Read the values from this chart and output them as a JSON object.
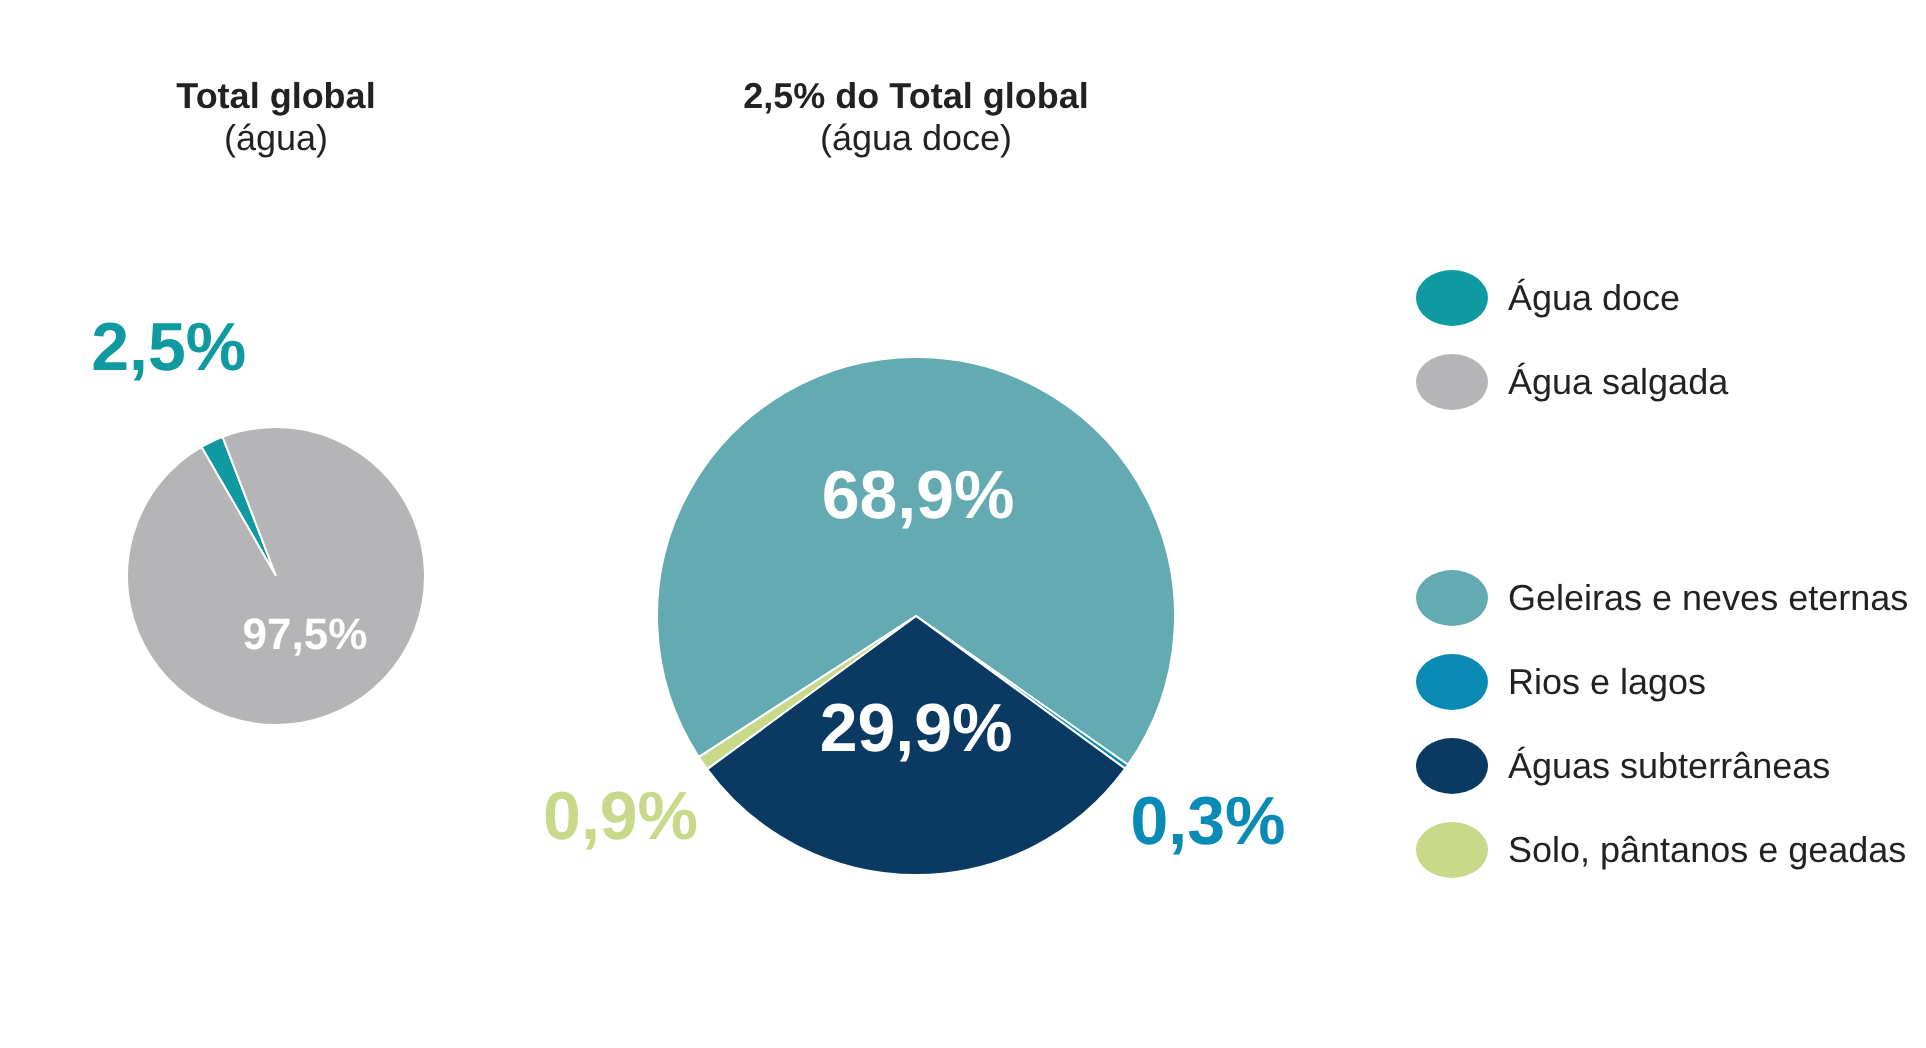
{
  "chart_data": [
    {
      "type": "pie",
      "title": "Total global",
      "subtitle": "(água)",
      "legend": "right",
      "categories": [
        "Água doce",
        "Água salgada"
      ],
      "values": [
        2.5,
        97.5
      ],
      "colors": [
        "#0e9aa0",
        "#b5b5b7"
      ],
      "value_labels": [
        "2,5%",
        "97,5%"
      ]
    },
    {
      "type": "pie",
      "title": "2,5% do Total global",
      "subtitle": "(água doce)",
      "legend": "right",
      "categories": [
        "Geleiras e neves eternas",
        "Rios e lagos",
        "Águas subterrâneas",
        "Solo, pântanos e geadas"
      ],
      "values": [
        68.9,
        0.3,
        29.9,
        0.9
      ],
      "colors": [
        "#64aab3",
        "#0a8bb5",
        "#0a3a62",
        "#c9d98a"
      ],
      "value_labels": [
        "68,9%",
        "0,3%",
        "29,9%",
        "0,9%"
      ]
    }
  ]
}
